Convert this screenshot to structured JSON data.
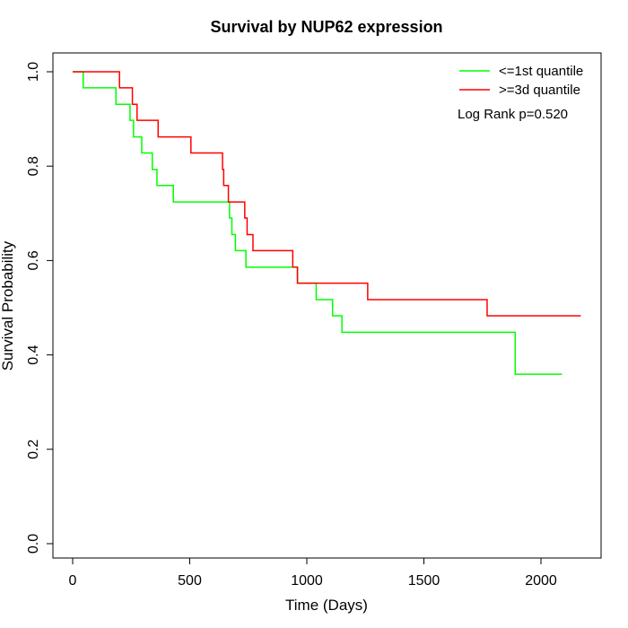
{
  "chart_data": {
    "type": "line",
    "title": "Survival by NUP62 expression",
    "xlabel": "Time (Days)",
    "ylabel": "Survival Probability",
    "xlim": [
      0,
      2200
    ],
    "ylim": [
      0,
      1.0
    ],
    "xticks": [
      "0",
      "500",
      "1000",
      "1500",
      "2000"
    ],
    "yticks": [
      "0.0",
      "0.2",
      "0.4",
      "0.6",
      "0.8",
      "1.0"
    ],
    "legend_position": "top-right",
    "annotation": "Log Rank p=0.520",
    "series": [
      {
        "name": "<=1st quantile",
        "color": "#00ff00",
        "step_points": [
          [
            0,
            1.0
          ],
          [
            45,
            0.966
          ],
          [
            185,
            0.931
          ],
          [
            245,
            0.897
          ],
          [
            260,
            0.862
          ],
          [
            295,
            0.828
          ],
          [
            340,
            0.793
          ],
          [
            360,
            0.759
          ],
          [
            430,
            0.724
          ],
          [
            670,
            0.69
          ],
          [
            680,
            0.655
          ],
          [
            695,
            0.621
          ],
          [
            740,
            0.586
          ],
          [
            960,
            0.552
          ],
          [
            1040,
            0.517
          ],
          [
            1110,
            0.483
          ],
          [
            1150,
            0.448
          ],
          [
            1890,
            0.359
          ],
          [
            2090,
            0.359
          ]
        ]
      },
      {
        "name": ">=3d quantile",
        "color": "#ff0000",
        "step_points": [
          [
            0,
            1.0
          ],
          [
            200,
            0.966
          ],
          [
            255,
            0.931
          ],
          [
            275,
            0.897
          ],
          [
            365,
            0.862
          ],
          [
            505,
            0.828
          ],
          [
            640,
            0.793
          ],
          [
            645,
            0.759
          ],
          [
            665,
            0.724
          ],
          [
            735,
            0.69
          ],
          [
            745,
            0.655
          ],
          [
            770,
            0.621
          ],
          [
            940,
            0.586
          ],
          [
            960,
            0.552
          ],
          [
            1260,
            0.517
          ],
          [
            1770,
            0.483
          ],
          [
            2170,
            0.483
          ]
        ]
      }
    ]
  }
}
